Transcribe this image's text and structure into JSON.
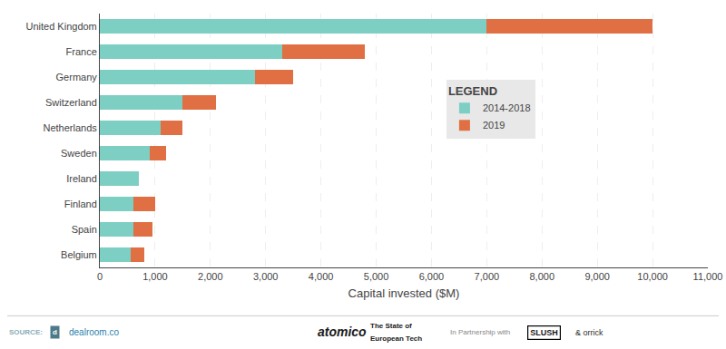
{
  "chart_data": {
    "type": "bar",
    "orientation": "horizontal",
    "stacked": true,
    "categories": [
      "United Kingdom",
      "France",
      "Germany",
      "Switzerland",
      "Netherlands",
      "Sweden",
      "Ireland",
      "Finland",
      "Spain",
      "Belgium"
    ],
    "series": [
      {
        "name": "2014-2018",
        "color": "#7dcfc4",
        "values": [
          7000,
          3300,
          2800,
          1500,
          1100,
          900,
          700,
          600,
          600,
          550
        ]
      },
      {
        "name": "2019",
        "color": "#e07043",
        "values": [
          3000,
          1500,
          700,
          600,
          400,
          300,
          0,
          400,
          350,
          250
        ]
      }
    ],
    "xlabel": "Capital invested ($M)",
    "xlim": [
      0,
      11000
    ],
    "xticks": [
      0,
      {
        "value": 1000,
        "label": "1,000"
      },
      {
        "value": 2000,
        "label": "2,000"
      },
      {
        "value": 3000,
        "label": "3,000"
      },
      {
        "value": 4000,
        "label": "4,000"
      },
      {
        "value": 5000,
        "label": "5,000"
      },
      {
        "value": 6000,
        "label": "6,000"
      },
      {
        "value": 7000,
        "label": "7,000"
      },
      {
        "value": 8000,
        "label": "8,000"
      },
      {
        "value": 9000,
        "label": "9,000"
      },
      {
        "value": 10000,
        "label": "10,000"
      },
      {
        "value": 11000,
        "label": "11,000"
      }
    ],
    "grid": true,
    "legend": "right",
    "legend_title": "LEGEND",
    "annotations": [
      "SOURCE:",
      "d",
      "dealroom.co",
      "atomico",
      "The State of",
      "European Tech",
      "In Partnership with",
      "SLUSH",
      "& orrick"
    ]
  }
}
